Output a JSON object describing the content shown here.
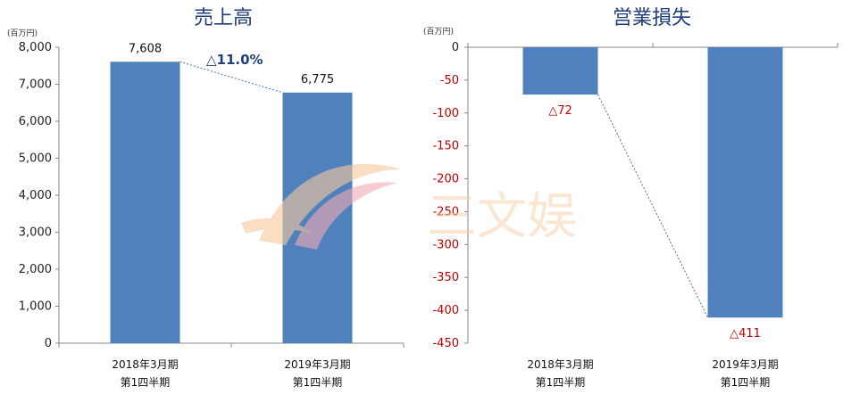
{
  "chart_data": [
    {
      "type": "bar",
      "title": "売上高",
      "unit_label": "(百万円)",
      "categories": [
        [
          "2018年3月期",
          "第1四半期"
        ],
        [
          "2019年3月期",
          "第1四半期"
        ]
      ],
      "values": [
        7608,
        6775
      ],
      "value_labels": [
        "7,608",
        "6,775"
      ],
      "change_label": "△11.0%",
      "ylim": [
        0,
        8000
      ],
      "yticks": [
        0,
        1000,
        2000,
        3000,
        4000,
        5000,
        6000,
        7000,
        8000
      ],
      "ytick_labels": [
        "0",
        "1,000",
        "2,000",
        "3,000",
        "4,000",
        "5,000",
        "6,000",
        "7,000",
        "8,000"
      ],
      "bar_color": "#4f81bd",
      "connector_color": "#4a6fb0",
      "change_color": "#1f3e7a"
    },
    {
      "type": "bar",
      "title": "営業損失",
      "unit_label": "(百万円)",
      "categories": [
        [
          "2018年3月期",
          "第1四半期"
        ],
        [
          "2019年3月期",
          "第1四半期"
        ]
      ],
      "values": [
        -72,
        -411
      ],
      "value_labels": [
        "△72",
        "△411"
      ],
      "ylim": [
        -450,
        0
      ],
      "yticks": [
        0,
        -50,
        -100,
        -150,
        -200,
        -250,
        -300,
        -350,
        -400,
        -450
      ],
      "ytick_labels": [
        "0",
        "-50",
        "-100",
        "-150",
        "-200",
        "-250",
        "-300",
        "-350",
        "-400",
        "-450"
      ],
      "bar_color": "#4f81bd",
      "connector_color": "#4a6fb0",
      "negative_label_color": "#c00000"
    }
  ],
  "watermark": {
    "text": "三文娱",
    "color": "#f6c99c",
    "accent_color": "#f3a9b5"
  }
}
